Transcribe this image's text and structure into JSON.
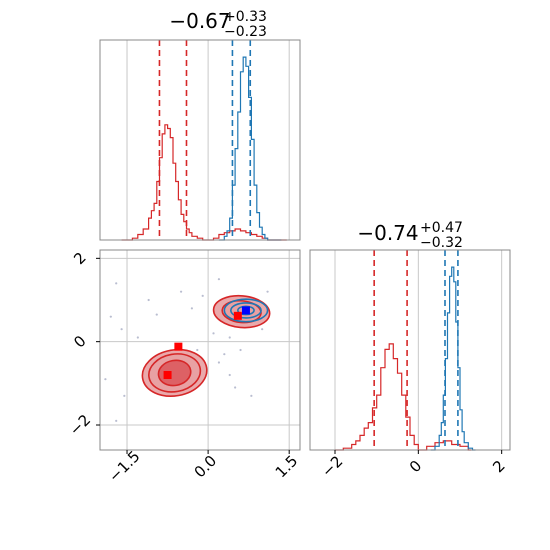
{
  "colors": {
    "red": "#d62728",
    "blue": "#1f77b4",
    "red_fill": "#e8a0a2",
    "red_fill_dark": "#db5a5e",
    "grid": "#c8c8c8",
    "axis": "#888888",
    "scatter": "#b9bdd0"
  },
  "chart_data": [
    {
      "type": "area",
      "panel": "top-left",
      "title": {
        "base": "−0.67",
        "sup": "+0.33",
        "sub": "−0.23"
      },
      "xlim": [
        -2.0,
        1.7
      ],
      "grid": true,
      "series": [
        {
          "color": "red",
          "quantile_lines": [
            -0.9,
            -0.4
          ],
          "x": [
            -1.6,
            -1.4,
            -1.3,
            -1.2,
            -1.1,
            -1.05,
            -1.0,
            -0.95,
            -0.9,
            -0.85,
            -0.8,
            -0.75,
            -0.7,
            -0.65,
            -0.6,
            -0.55,
            -0.5,
            -0.45,
            -0.4,
            -0.35,
            -0.3,
            -0.2,
            -0.1,
            0.0,
            0.1,
            0.2,
            0.3,
            0.4,
            0.5,
            0.6,
            0.7,
            0.8,
            0.9,
            1.0,
            1.1,
            1.2,
            1.4
          ],
          "y": [
            0.0,
            0.01,
            0.03,
            0.06,
            0.12,
            0.16,
            0.2,
            0.32,
            0.45,
            0.58,
            0.63,
            0.61,
            0.56,
            0.42,
            0.32,
            0.22,
            0.14,
            0.1,
            0.06,
            0.04,
            0.02,
            0.01,
            0.0,
            0.0,
            0.01,
            0.03,
            0.04,
            0.05,
            0.06,
            0.05,
            0.04,
            0.03,
            0.02,
            0.01,
            0.0,
            0.0,
            0.0
          ]
        },
        {
          "color": "blue",
          "quantile_lines": [
            0.45,
            0.78
          ],
          "x": [
            0.2,
            0.3,
            0.35,
            0.4,
            0.45,
            0.5,
            0.55,
            0.6,
            0.65,
            0.7,
            0.75,
            0.8,
            0.85,
            0.9,
            0.95,
            1.0,
            1.05,
            1.1,
            1.2,
            1.3
          ],
          "y": [
            0.0,
            0.02,
            0.05,
            0.12,
            0.3,
            0.5,
            0.7,
            0.92,
            1.0,
            0.95,
            0.78,
            0.55,
            0.3,
            0.15,
            0.07,
            0.03,
            0.01,
            0.0,
            0.0,
            0.0
          ]
        }
      ]
    },
    {
      "type": "scatter",
      "panel": "bottom-left",
      "xlim": [
        -2.0,
        1.7
      ],
      "ylim": [
        -2.6,
        2.2
      ],
      "xticks": [
        "−1.5",
        "0.0",
        "1.5"
      ],
      "xtick_values": [
        -1.5,
        0.0,
        1.5
      ],
      "yticks": [
        "−2",
        "0",
        "2"
      ],
      "ytick_values": [
        -2,
        0,
        2
      ],
      "grid": true,
      "contours": [
        {
          "color": "red",
          "center": [
            -0.62,
            -0.75
          ],
          "levels": [
            {
              "rx": 0.6,
              "ry": 0.55,
              "rot": -10,
              "fill": "red_fill"
            },
            {
              "rx": 0.48,
              "ry": 0.45,
              "rot": -10,
              "fill": "red_fill"
            },
            {
              "rx": 0.3,
              "ry": 0.3,
              "rot": -10,
              "fill": "red_fill_dark"
            }
          ]
        },
        {
          "color": "red",
          "center": [
            0.62,
            0.72
          ],
          "levels": [
            {
              "rx": 0.52,
              "ry": 0.38,
              "rot": 5,
              "fill": "red_fill"
            },
            {
              "rx": 0.36,
              "ry": 0.26,
              "rot": 5,
              "fill": "red_fill"
            }
          ]
        },
        {
          "color": "blue",
          "center": [
            0.7,
            0.75
          ],
          "levels": [
            {
              "rx": 0.4,
              "ry": 0.27,
              "rot": 0,
              "fill": "none"
            },
            {
              "rx": 0.28,
              "ry": 0.18,
              "rot": 0,
              "fill": "none"
            },
            {
              "rx": 0.15,
              "ry": 0.1,
              "rot": 0,
              "fill": "none"
            }
          ]
        }
      ],
      "markers": [
        {
          "x": -0.75,
          "y": -0.8,
          "color": "red"
        },
        {
          "x": -0.55,
          "y": -0.12,
          "color": "red"
        },
        {
          "x": 0.55,
          "y": 0.62,
          "color": "red"
        },
        {
          "x": 0.7,
          "y": 0.75,
          "color": "blue"
        }
      ],
      "scatter_points": [
        [
          -1.8,
          0.6
        ],
        [
          -1.7,
          1.4
        ],
        [
          -1.6,
          0.3
        ],
        [
          -1.55,
          -1.3
        ],
        [
          -1.7,
          -1.9
        ],
        [
          -1.9,
          -0.9
        ],
        [
          -1.1,
          1.0
        ],
        [
          -0.5,
          1.2
        ],
        [
          -0.1,
          1.1
        ],
        [
          -0.3,
          0.8
        ],
        [
          0.1,
          0.2
        ],
        [
          0.3,
          -0.3
        ],
        [
          0.4,
          0.1
        ],
        [
          0.6,
          -0.2
        ],
        [
          0.2,
          -0.5
        ],
        [
          0.5,
          -1.1
        ],
        [
          0.8,
          -1.3
        ],
        [
          -1.3,
          0.1
        ],
        [
          -0.95,
          0.65
        ],
        [
          1.0,
          0.3
        ],
        [
          1.1,
          1.2
        ],
        [
          0.2,
          1.5
        ],
        [
          -0.2,
          -0.2
        ],
        [
          0.4,
          -0.8
        ]
      ]
    },
    {
      "type": "area",
      "panel": "bottom-right",
      "title": {
        "base": "−0.74",
        "sup": "+0.47",
        "sub": "−0.32"
      },
      "xlim": [
        -2.6,
        2.2
      ],
      "xticks": [
        "−2",
        "0",
        "2"
      ],
      "xtick_values": [
        -2,
        0,
        2
      ],
      "grid": true,
      "series": [
        {
          "color": "red",
          "quantile_lines": [
            -1.06,
            -0.27
          ],
          "x": [
            -2.0,
            -1.8,
            -1.6,
            -1.5,
            -1.4,
            -1.3,
            -1.2,
            -1.1,
            -1.0,
            -0.9,
            -0.8,
            -0.7,
            -0.6,
            -0.5,
            -0.4,
            -0.3,
            -0.2,
            -0.1,
            0.0,
            0.2,
            0.4,
            0.6,
            0.8,
            1.0,
            1.2
          ],
          "y": [
            0.0,
            0.01,
            0.03,
            0.05,
            0.08,
            0.12,
            0.15,
            0.23,
            0.3,
            0.45,
            0.55,
            0.58,
            0.5,
            0.42,
            0.3,
            0.18,
            0.08,
            0.03,
            0.0,
            0.02,
            0.04,
            0.05,
            0.03,
            0.02,
            0.0
          ]
        },
        {
          "color": "blue",
          "quantile_lines": [
            0.64,
            0.95
          ],
          "x": [
            0.3,
            0.4,
            0.5,
            0.55,
            0.6,
            0.65,
            0.7,
            0.75,
            0.8,
            0.85,
            0.9,
            0.95,
            1.0,
            1.05,
            1.1,
            1.2,
            1.3
          ],
          "y": [
            0.0,
            0.02,
            0.08,
            0.15,
            0.3,
            0.5,
            0.75,
            0.95,
            1.0,
            0.92,
            0.7,
            0.45,
            0.22,
            0.1,
            0.04,
            0.01,
            0.0
          ]
        }
      ]
    }
  ]
}
